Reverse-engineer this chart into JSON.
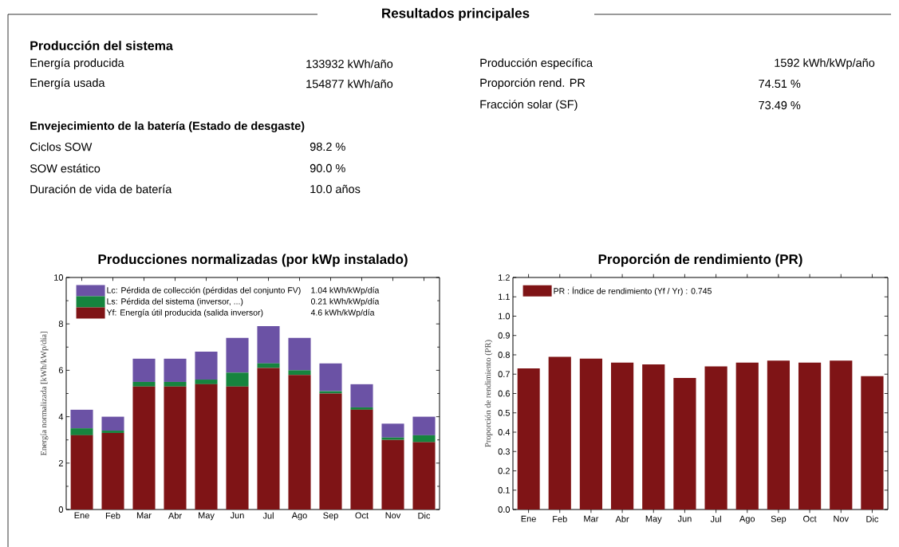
{
  "chart_data": [
    {
      "type": "other",
      "title": "Resultados principales",
      "annotations": [
        "Producción del sistema",
        "Energía producida",
        "133932 kWh/año",
        "Energía usada",
        "154877 kWh/año",
        "Producción específica",
        "1592 kWh/kWp/año",
        "Proporción rend. PR",
        "74.51 %",
        "Fracción solar (SF)",
        "73.49 %",
        "Envejecimiento de la batería (Estado de desgaste)",
        "Ciclos SOW",
        "98.2 %",
        "SOW estático",
        "90.0 %",
        "Duración de vida de batería",
        "10.0 años"
      ]
    },
    {
      "type": "bar",
      "stacked": true,
      "title": "Producciones normalizadas (por kWp instalado)",
      "ylabel": "Energía normalizada [kWh/kWp/día]",
      "categories": [
        "Ene",
        "Feb",
        "Mar",
        "Abr",
        "May",
        "Jun",
        "Jul",
        "Ago",
        "Sep",
        "Oct",
        "Nov",
        "Dic"
      ],
      "series": [
        {
          "name": "Yf: Energía útil producida  (salida inversor)",
          "color": "#7f1416",
          "values": [
            3.2,
            3.3,
            5.3,
            5.3,
            5.4,
            5.3,
            6.1,
            5.8,
            5.0,
            4.3,
            3.0,
            2.9
          ]
        },
        {
          "name": "Ls: Pérdida del sistema  (inversor, ...)",
          "color": "#16843e",
          "values": [
            0.3,
            0.1,
            0.2,
            0.2,
            0.2,
            0.6,
            0.2,
            0.2,
            0.1,
            0.1,
            0.1,
            0.3
          ]
        },
        {
          "name": "Lc: Pérdida de collección (pérdidas del conjunto FV)",
          "color": "#6b52a5",
          "values": [
            0.8,
            0.6,
            1.0,
            1.0,
            1.2,
            1.5,
            1.6,
            1.4,
            1.2,
            1.0,
            0.6,
            0.8
          ]
        }
      ],
      "annotations": [
        "1.04 kWh/kWp/día",
        "0.21 kWh/kWp/día",
        "4.6 kWh/kWp/día"
      ],
      "ylim": [
        0,
        10
      ],
      "yticks": [
        0,
        2,
        4,
        6,
        8,
        10
      ],
      "legend": "top left"
    },
    {
      "type": "bar",
      "title": "Proporción de rendimiento (PR)",
      "ylabel": "Proporción de rendimiento (PR)",
      "categories": [
        "Ene",
        "Feb",
        "Mar",
        "Abr",
        "May",
        "Jun",
        "Jul",
        "Ago",
        "Sep",
        "Oct",
        "Nov",
        "Dic"
      ],
      "series": [
        {
          "name": "PR : Índice de rendimiento (Yf / Yr) :  0.745",
          "color": "#7f1416",
          "values": [
            0.73,
            0.79,
            0.78,
            0.76,
            0.75,
            0.68,
            0.74,
            0.76,
            0.77,
            0.76,
            0.77,
            0.69
          ]
        }
      ],
      "ylim": [
        0,
        1.2
      ],
      "yticks": [
        {
          "value": 0,
          "label": "0.0"
        },
        0.1,
        0.2,
        0.3,
        0.4,
        0.5,
        0.6,
        0.7,
        0.8,
        0.9,
        {
          "value": 1,
          "label": "1.0"
        },
        1.1,
        1.2
      ],
      "legend": "top left"
    }
  ]
}
